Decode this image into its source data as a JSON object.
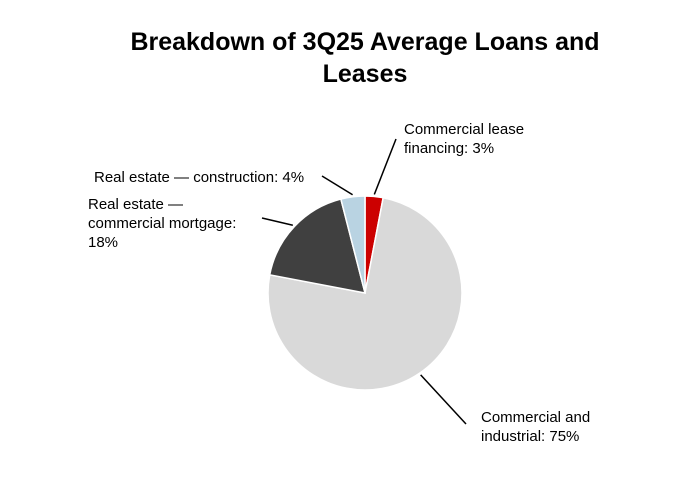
{
  "chart_data": {
    "type": "pie",
    "title": "Breakdown of 3Q25 Average Loans and Leases",
    "slices": [
      {
        "label": "Commercial lease financing",
        "value": 3,
        "display": "Commercial lease\nfinancing: 3%",
        "color": "#cc0000"
      },
      {
        "label": "Commercial and industrial",
        "value": 75,
        "display": "Commercial and\nindustrial: 75%",
        "color": "#d9d9d9"
      },
      {
        "label": "Real estate — commercial mortgage",
        "value": 18,
        "display": "Real estate —\ncommercial mortgage:\n18%",
        "color": "#404040"
      },
      {
        "label": "Real estate — construction",
        "value": 4,
        "display": "Real estate — construction: 4%",
        "color": "#b9d3e2"
      }
    ],
    "legend": "none",
    "start_angle": "12 o'clock, clockwise"
  }
}
